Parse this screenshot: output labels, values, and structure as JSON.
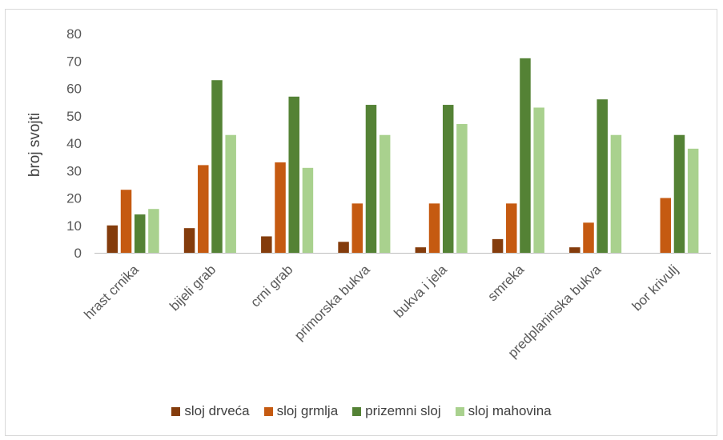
{
  "chart_data": {
    "type": "bar",
    "title": "",
    "xlabel": "",
    "ylabel": "broj svojti",
    "ylim": [
      0,
      80
    ],
    "yticks": [
      "0",
      "10",
      "20",
      "30",
      "40",
      "50",
      "60",
      "70",
      "80"
    ],
    "grid": false,
    "legend_position": "bottom",
    "categories": [
      "hrast crnika",
      "bijeli grab",
      "crni grab",
      "primorska bukva",
      "bukva i jela",
      "smreka",
      "predplaninska bukva",
      "bor krivulj"
    ],
    "series": [
      {
        "name": "sloj drveća",
        "color": "#843c0c",
        "values": [
          10,
          9,
          6,
          4,
          2,
          5,
          2,
          0
        ]
      },
      {
        "name": "sloj grmlja",
        "color": "#c55a11",
        "values": [
          23,
          32,
          33,
          18,
          18,
          18,
          11,
          20
        ]
      },
      {
        "name": "prizemni sloj",
        "color": "#548235",
        "values": [
          14,
          63,
          57,
          54,
          54,
          71,
          56,
          43
        ]
      },
      {
        "name": "sloj mahovina",
        "color": "#a9d18e",
        "values": [
          16,
          43,
          31,
          43,
          47,
          53,
          43,
          38
        ]
      }
    ]
  }
}
